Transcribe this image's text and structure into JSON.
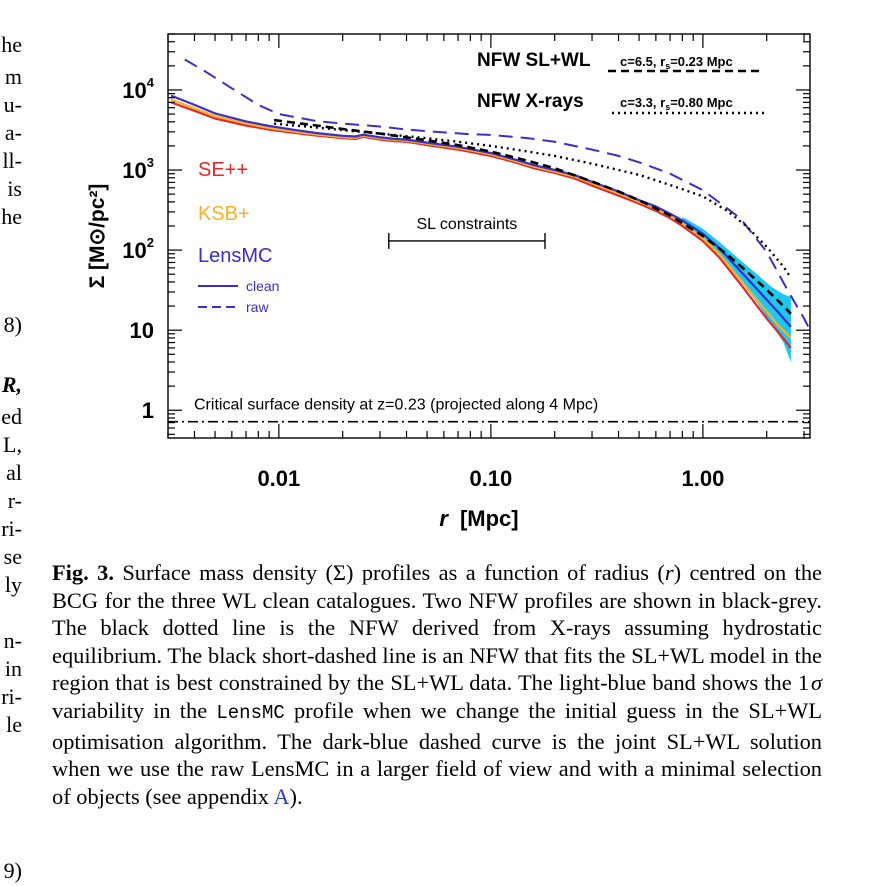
{
  "left_column_fragments": [
    {
      "text": "he",
      "top": 32
    },
    {
      "text": "m",
      "top": 64
    },
    {
      "text": "u-",
      "top": 92
    },
    {
      "text": "a-",
      "top": 120
    },
    {
      "text": "ll-",
      "top": 148
    },
    {
      "text": "is",
      "top": 176
    },
    {
      "text": "he",
      "top": 204
    },
    {
      "text": "8)",
      "top": 312
    },
    {
      "text": "R,",
      "top": 372
    },
    {
      "text": "ed",
      "top": 404
    },
    {
      "text": "L,",
      "top": 432
    },
    {
      "text": "al",
      "top": 460
    },
    {
      "text": "r-",
      "top": 488
    },
    {
      "text": "ri-",
      "top": 516
    },
    {
      "text": "se",
      "top": 544
    },
    {
      "text": "ly",
      "top": 572
    },
    {
      "text": "n-",
      "top": 628
    },
    {
      "text": "in",
      "top": 656
    },
    {
      "text": "ri-",
      "top": 684
    },
    {
      "text": "le",
      "top": 712
    },
    {
      "text": "9)",
      "top": 858
    }
  ],
  "chart_data": {
    "type": "line",
    "xlabel_var": "r",
    "xlabel_unit": "[Mpc]",
    "ylabel": "Σ [M⊙/pc²]",
    "x_scale": "log",
    "y_scale": "log",
    "xlim": [
      0.003,
      3.2
    ],
    "ylim": [
      0.45,
      50000
    ],
    "x_ticks": [
      {
        "v": 0.01,
        "label": "0.01"
      },
      {
        "v": 0.1,
        "label": "0.10"
      },
      {
        "v": 1,
        "label": "1.00"
      }
    ],
    "y_ticks": [
      {
        "v": 10000,
        "label": "10",
        "sup": "4"
      },
      {
        "v": 1000,
        "label": "10",
        "sup": "3"
      },
      {
        "v": 100,
        "label": "10",
        "sup": "2"
      },
      {
        "v": 10,
        "label": "10",
        "sup": ""
      },
      {
        "v": 1,
        "label": "1",
        "sup": ""
      }
    ],
    "legend": {
      "se": {
        "text": "SE++",
        "color": "#e8262a"
      },
      "ksb": {
        "text": "KSB+",
        "color": "#f5b325"
      },
      "lensmc": {
        "text": "LensMC",
        "color": "#3a2fc7"
      },
      "clean": "clean",
      "raw": "raw"
    },
    "nfw_slwl": {
      "label": "NFW SL+WL",
      "params": "c=6.5, r",
      "params_sub": "s",
      "params_tail": "=0.23 Mpc"
    },
    "nfw_xray": {
      "label": "NFW X-rays",
      "params": "c=3.3, r",
      "params_sub": "s",
      "params_tail": "=0.80 Mpc"
    },
    "sl_constraints": {
      "label": "SL constraints",
      "range": [
        0.033,
        0.18
      ],
      "y": 130
    },
    "critical_label": "Critical surface density at z=0.23 (projected along 4 Mpc)",
    "critical_value": 0.72,
    "series": [
      {
        "name": "SE++",
        "style": "solid",
        "color": "#e8262a",
        "x": [
          0.0031,
          0.004,
          0.005,
          0.007,
          0.009,
          0.012,
          0.015,
          0.02,
          0.023,
          0.025,
          0.03,
          0.035,
          0.04,
          0.05,
          0.07,
          0.1,
          0.13,
          0.16,
          0.2,
          0.25,
          0.3,
          0.4,
          0.5,
          0.6,
          0.7,
          0.8,
          1.0,
          1.2,
          1.5,
          2.0,
          2.3,
          2.6
        ],
        "y": [
          7000,
          5500,
          4400,
          3600,
          3200,
          2900,
          2700,
          2500,
          2450,
          2600,
          2400,
          2300,
          2250,
          2050,
          1800,
          1500,
          1250,
          1050,
          920,
          780,
          640,
          480,
          380,
          310,
          250,
          200,
          130,
          80,
          38,
          14,
          9,
          6
        ]
      },
      {
        "name": "KSB+",
        "style": "solid",
        "color": "#f5b325",
        "x": [
          0.0031,
          0.004,
          0.005,
          0.007,
          0.009,
          0.012,
          0.015,
          0.02,
          0.023,
          0.025,
          0.03,
          0.035,
          0.04,
          0.05,
          0.07,
          0.1,
          0.13,
          0.16,
          0.2,
          0.25,
          0.3,
          0.4,
          0.5,
          0.6,
          0.7,
          0.8,
          1.0,
          1.2,
          1.5,
          2.0,
          2.3,
          2.6
        ],
        "y": [
          7600,
          5900,
          4700,
          3800,
          3350,
          3000,
          2780,
          2580,
          2520,
          2680,
          2480,
          2380,
          2320,
          2130,
          1880,
          1570,
          1300,
          1100,
          960,
          820,
          680,
          510,
          400,
          330,
          265,
          215,
          140,
          88,
          43,
          17,
          11,
          8
        ]
      },
      {
        "name": "LensMC clean",
        "style": "solid",
        "color": "#3a2fc7",
        "x": [
          0.0031,
          0.004,
          0.005,
          0.007,
          0.009,
          0.012,
          0.015,
          0.02,
          0.023,
          0.025,
          0.03,
          0.035,
          0.04,
          0.05,
          0.07,
          0.1,
          0.13,
          0.16,
          0.2,
          0.25,
          0.3,
          0.4,
          0.5,
          0.6,
          0.7,
          0.8,
          1.0,
          1.2,
          1.5,
          2.0,
          2.3,
          2.6
        ],
        "y": [
          8500,
          6500,
          5100,
          4050,
          3550,
          3150,
          2900,
          2680,
          2620,
          2760,
          2560,
          2450,
          2400,
          2200,
          1950,
          1630,
          1350,
          1150,
          1000,
          860,
          710,
          540,
          420,
          350,
          285,
          235,
          160,
          105,
          55,
          24,
          16,
          11
        ]
      },
      {
        "name": "LensMC raw",
        "style": "dashed",
        "color": "#3a2fc7",
        "x": [
          0.0036,
          0.0045,
          0.006,
          0.008,
          0.01,
          0.015,
          0.02,
          0.03,
          0.04,
          0.06,
          0.08,
          0.1,
          0.15,
          0.2,
          0.3,
          0.4,
          0.5,
          0.7,
          1.0,
          1.5,
          2.0,
          2.5,
          3.0,
          3.2
        ],
        "y": [
          24000,
          17000,
          10500,
          6500,
          5000,
          4100,
          3800,
          3500,
          3200,
          2950,
          2800,
          2750,
          2500,
          2250,
          1800,
          1500,
          1250,
          900,
          560,
          250,
          95,
          32,
          14,
          10
        ]
      },
      {
        "name": "NFW SL+WL",
        "style": "shortdash",
        "color": "#000000",
        "x": [
          0.0095,
          0.015,
          0.02,
          0.03,
          0.05,
          0.07,
          0.1,
          0.15,
          0.2,
          0.3,
          0.4,
          0.5,
          0.7,
          1.0,
          1.3,
          1.6,
          2.0,
          2.4,
          2.6
        ],
        "y": [
          4200,
          3600,
          3250,
          2850,
          2350,
          2050,
          1700,
          1300,
          1050,
          720,
          540,
          420,
          270,
          150,
          88,
          55,
          32,
          20,
          16
        ]
      },
      {
        "name": "NFW X-rays",
        "style": "dotted",
        "color": "#000000",
        "x": [
          0.0095,
          0.015,
          0.02,
          0.03,
          0.05,
          0.07,
          0.1,
          0.15,
          0.2,
          0.3,
          0.4,
          0.5,
          0.7,
          1.0,
          1.3,
          1.6,
          2.0,
          2.4,
          2.6
        ],
        "y": [
          3800,
          3400,
          3150,
          2850,
          2500,
          2250,
          2000,
          1700,
          1500,
          1200,
          1000,
          870,
          650,
          470,
          310,
          200,
          110,
          62,
          45
        ]
      }
    ],
    "band": {
      "name": "1σ LensMC variability",
      "color": "#1fc6ee",
      "x": [
        0.8,
        1.0,
        1.2,
        1.5,
        1.8,
        2.1,
        2.4,
        2.6
      ],
      "y_low": [
        200,
        130,
        85,
        42,
        22,
        12,
        7,
        4
      ],
      "y_high": [
        260,
        185,
        125,
        75,
        50,
        35,
        28,
        26
      ]
    }
  },
  "caption": {
    "label": "Fig. 3.",
    "p1": " Surface mass density (Σ) profiles as a function of radius (",
    "r": "r",
    "p2": ") centred on the BCG for the three WL clean catalogues. Two NFW profiles are shown in black-grey. The black dotted line is the NFW derived from X-rays assuming hydrostatic equilibrium. The black short-dashed line is an NFW that fits the SL+WL model in the region that is best constrained by the SL+WL data. The light-blue band shows the 1",
    "sigma": "σ",
    "p3": " variability in the ",
    "lensmc": "LensMC",
    "p4": " profile when we change the initial guess in the SL+WL optimisation algorithm. The dark-blue dashed curve is the joint SL+WL solution when we use the raw LensMC in a larger field of view and with a minimal selection of objects (see appendix ",
    "appendix": "A",
    "p5": ")."
  }
}
